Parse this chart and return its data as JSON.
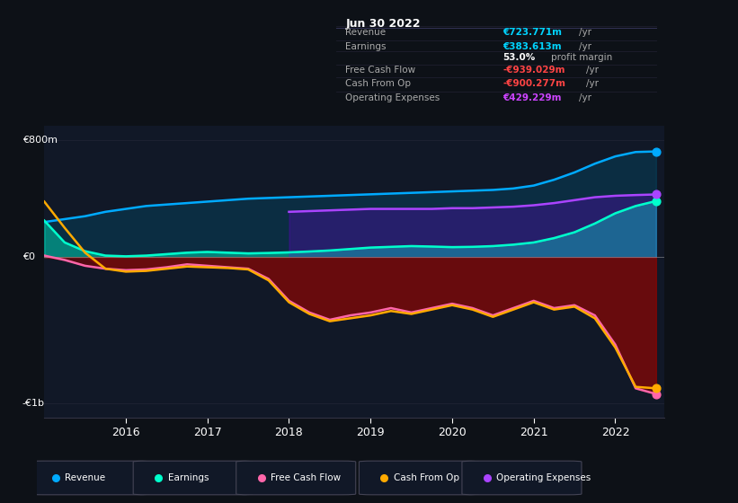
{
  "bg_color": "#0d1117",
  "chart_bg": "#0d1420",
  "plot_bg": "#111827",
  "title": "Jun 30 2022",
  "table": {
    "Revenue": {
      "value": "€723.771m /yr",
      "color": "#00d4ff"
    },
    "Earnings": {
      "value": "€383.613m /yr",
      "color": "#00d4ff"
    },
    "profit_margin": {
      "value": "53.0%",
      "color": "white"
    },
    "Free Cash Flow": {
      "value": "-€939.029m /yr",
      "color": "#ff4444"
    },
    "Cash From Op": {
      "value": "-€900.277m /yr",
      "color": "#ff4444"
    },
    "Operating Expenses": {
      "value": "€429.229m /yr",
      "color": "#cc44ff"
    }
  },
  "ylim": [
    -1100,
    900
  ],
  "ylabel_800": "€800m",
  "ylabel_0": "€0",
  "ylabel_neg1b": "-€1b",
  "years": [
    2015.0,
    2015.25,
    2015.5,
    2015.75,
    2016.0,
    2016.25,
    2016.5,
    2016.75,
    2017.0,
    2017.25,
    2017.5,
    2017.75,
    2018.0,
    2018.25,
    2018.5,
    2018.75,
    2019.0,
    2019.25,
    2019.5,
    2019.75,
    2020.0,
    2020.25,
    2020.5,
    2020.75,
    2021.0,
    2021.25,
    2021.5,
    2021.75,
    2022.0,
    2022.25,
    2022.5
  ],
  "revenue": [
    240,
    260,
    280,
    310,
    330,
    350,
    360,
    370,
    380,
    390,
    400,
    405,
    410,
    415,
    420,
    425,
    430,
    435,
    440,
    445,
    450,
    455,
    460,
    470,
    490,
    530,
    580,
    640,
    690,
    720,
    724
  ],
  "earnings": [
    250,
    100,
    40,
    10,
    5,
    10,
    20,
    30,
    35,
    30,
    25,
    28,
    32,
    38,
    45,
    55,
    65,
    70,
    75,
    72,
    68,
    70,
    75,
    85,
    100,
    130,
    170,
    230,
    300,
    350,
    384
  ],
  "free_cash_flow": [
    10,
    -20,
    -60,
    -80,
    -90,
    -85,
    -70,
    -50,
    -60,
    -70,
    -80,
    -150,
    -300,
    -380,
    -430,
    -400,
    -380,
    -350,
    -380,
    -350,
    -320,
    -350,
    -400,
    -350,
    -300,
    -350,
    -330,
    -400,
    -600,
    -900,
    -939
  ],
  "cash_from_op": [
    380,
    200,
    30,
    -80,
    -100,
    -95,
    -80,
    -65,
    -70,
    -75,
    -85,
    -160,
    -310,
    -390,
    -440,
    -420,
    -400,
    -370,
    -390,
    -360,
    -330,
    -360,
    -410,
    -360,
    -310,
    -360,
    -340,
    -420,
    -620,
    -890,
    -900
  ],
  "operating_expenses": [
    null,
    null,
    null,
    null,
    null,
    null,
    null,
    null,
    null,
    null,
    null,
    null,
    310,
    315,
    320,
    325,
    330,
    330,
    330,
    330,
    335,
    335,
    340,
    345,
    355,
    370,
    390,
    410,
    420,
    425,
    429
  ],
  "colors": {
    "revenue": "#00aaff",
    "earnings": "#00ffcc",
    "free_cash_flow": "#ff66aa",
    "cash_from_op": "#ffaa00",
    "operating_expenses": "#aa44ff"
  },
  "legend_items": [
    "Revenue",
    "Earnings",
    "Free Cash Flow",
    "Cash From Op",
    "Operating Expenses"
  ]
}
